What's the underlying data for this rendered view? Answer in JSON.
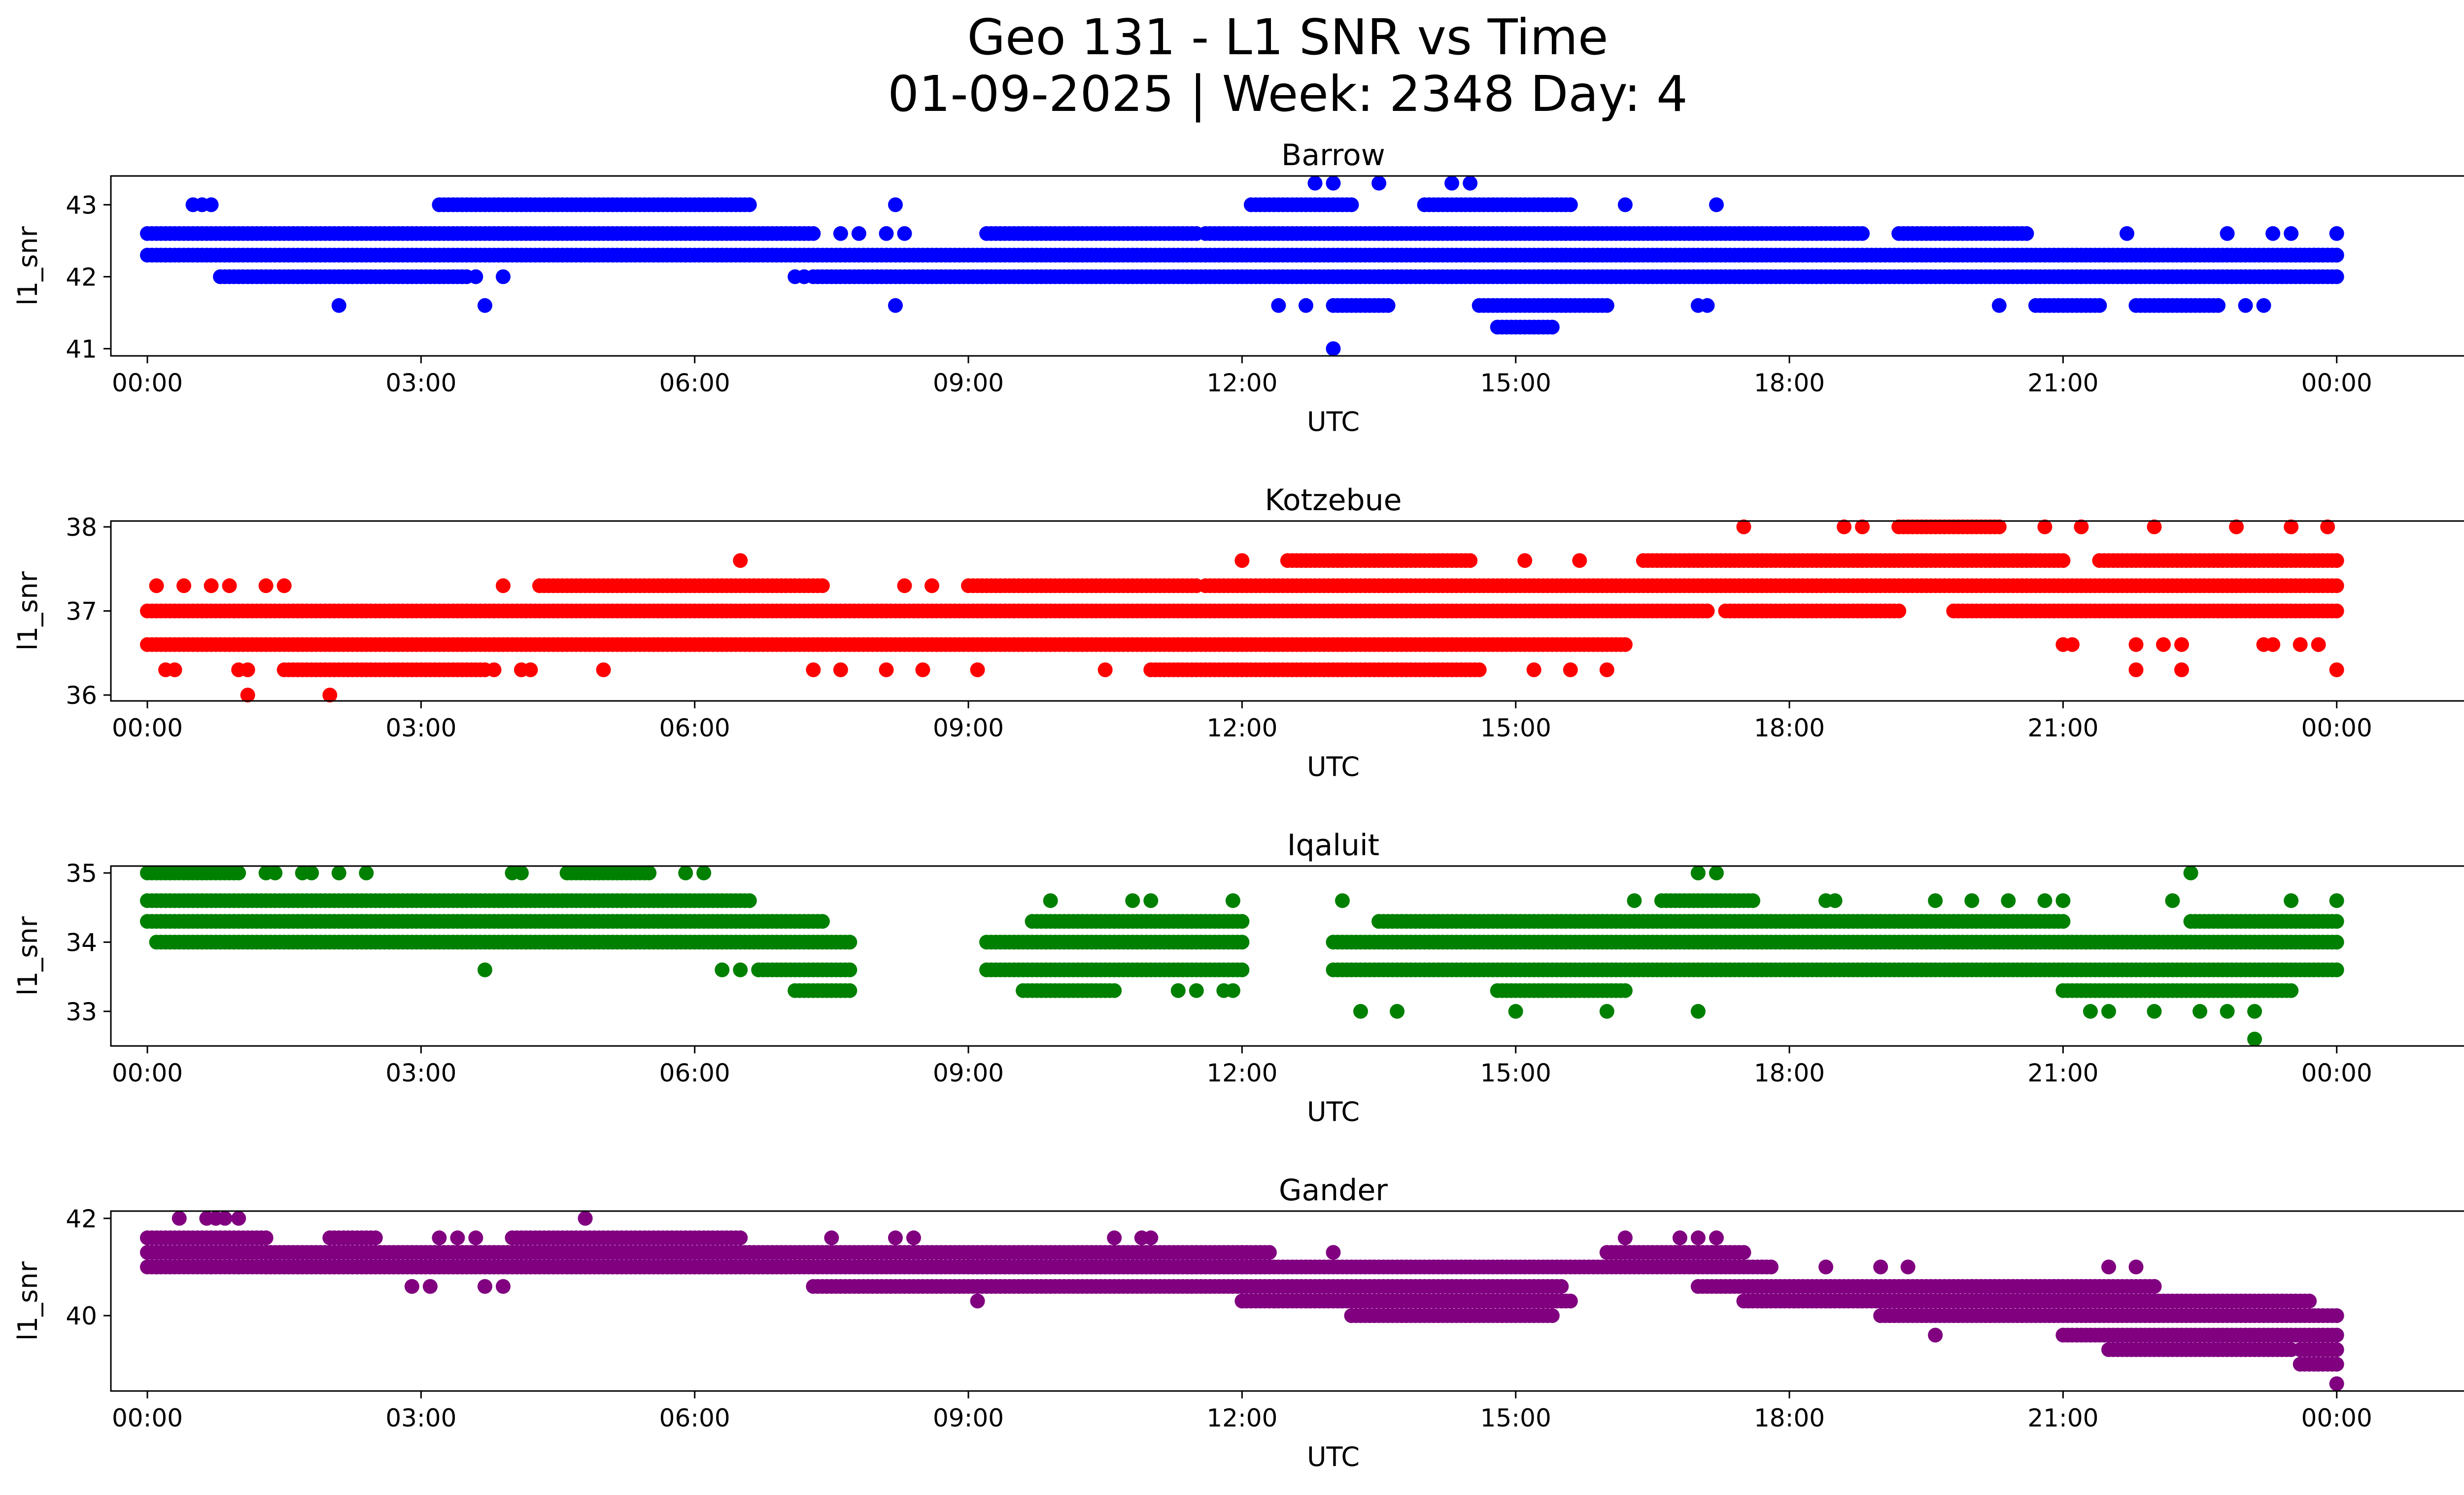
{
  "figure": {
    "title_line1": "Geo 131 - L1 SNR vs Time",
    "title_line2": "01-09-2025 | Week: 2348 Day: 4"
  },
  "chart_data": [
    {
      "type": "scatter",
      "title": "Barrow",
      "xlabel": "UTC",
      "ylabel": "l1_snr",
      "color": "#0000ff",
      "xlim": [
        -0.4,
        26.4
      ],
      "ylim": [
        40.9,
        43.4
      ],
      "xticks": [
        0,
        3,
        6,
        9,
        12,
        15,
        18,
        21,
        24
      ],
      "xtick_labels": [
        "00:00",
        "03:00",
        "06:00",
        "09:00",
        "12:00",
        "15:00",
        "18:00",
        "21:00",
        "00:00"
      ],
      "yticks": [
        41,
        42,
        43
      ],
      "ytick_labels": [
        "41",
        "42",
        "43"
      ],
      "segments": [
        {
          "y": 42.6,
          "from": 0.0,
          "to": 7.3
        },
        {
          "y": 42.3,
          "from": 0.0,
          "to": 24.0
        },
        {
          "y": 42.0,
          "from": 0.8,
          "to": 3.5
        },
        {
          "y": 42.0,
          "from": 7.3,
          "to": 24.0
        },
        {
          "y": 42.6,
          "from": 9.2,
          "to": 11.5
        },
        {
          "y": 42.6,
          "from": 11.6,
          "to": 18.8
        },
        {
          "y": 42.6,
          "from": 19.2,
          "to": 20.6
        },
        {
          "y": 43.0,
          "from": 3.2,
          "to": 6.6
        },
        {
          "y": 43.0,
          "from": 12.1,
          "to": 13.2
        },
        {
          "y": 43.0,
          "from": 14.0,
          "to": 15.6
        },
        {
          "y": 42.3,
          "from": 23.5,
          "to": 24.0
        },
        {
          "y": 41.6,
          "from": 13.0,
          "to": 13.6
        },
        {
          "y": 41.6,
          "from": 14.6,
          "to": 16.0
        },
        {
          "y": 41.6,
          "from": 20.7,
          "to": 21.4
        },
        {
          "y": 41.6,
          "from": 21.8,
          "to": 22.7
        },
        {
          "y": 41.3,
          "from": 14.8,
          "to": 15.4
        }
      ],
      "points": [
        {
          "x": 0.5,
          "y": 43.0
        },
        {
          "x": 0.6,
          "y": 43.0
        },
        {
          "x": 0.7,
          "y": 43.0
        },
        {
          "x": 8.2,
          "y": 43.0
        },
        {
          "x": 17.2,
          "y": 43.0
        },
        {
          "x": 16.2,
          "y": 43.0
        },
        {
          "x": 12.8,
          "y": 43.3
        },
        {
          "x": 13.0,
          "y": 43.3
        },
        {
          "x": 13.5,
          "y": 43.3
        },
        {
          "x": 14.3,
          "y": 43.3
        },
        {
          "x": 14.5,
          "y": 43.3
        },
        {
          "x": 2.1,
          "y": 41.6
        },
        {
          "x": 3.7,
          "y": 41.6
        },
        {
          "x": 8.2,
          "y": 41.6
        },
        {
          "x": 12.4,
          "y": 41.6
        },
        {
          "x": 12.7,
          "y": 41.6
        },
        {
          "x": 17.0,
          "y": 41.6
        },
        {
          "x": 17.1,
          "y": 41.6
        },
        {
          "x": 20.3,
          "y": 41.6
        },
        {
          "x": 23.0,
          "y": 41.6
        },
        {
          "x": 23.2,
          "y": 41.6
        },
        {
          "x": 13.0,
          "y": 41.0
        },
        {
          "x": 3.6,
          "y": 42.0
        },
        {
          "x": 3.9,
          "y": 42.0
        },
        {
          "x": 22.8,
          "y": 42.6
        },
        {
          "x": 23.3,
          "y": 42.6
        },
        {
          "x": 23.5,
          "y": 42.6
        },
        {
          "x": 24.0,
          "y": 42.6
        },
        {
          "x": 21.7,
          "y": 42.6
        },
        {
          "x": 8.1,
          "y": 42.6
        },
        {
          "x": 8.3,
          "y": 42.6
        },
        {
          "x": 7.6,
          "y": 42.6
        },
        {
          "x": 7.8,
          "y": 42.6
        },
        {
          "x": 7.1,
          "y": 42.0
        },
        {
          "x": 7.2,
          "y": 42.0
        }
      ]
    },
    {
      "type": "scatter",
      "title": "Kotzebue",
      "xlabel": "UTC",
      "ylabel": "l1_snr",
      "color": "#ff0000",
      "xlim": [
        -0.4,
        26.4
      ],
      "ylim": [
        35.93,
        38.07
      ],
      "xticks": [
        0,
        3,
        6,
        9,
        12,
        15,
        18,
        21,
        24
      ],
      "xtick_labels": [
        "00:00",
        "03:00",
        "06:00",
        "09:00",
        "12:00",
        "15:00",
        "18:00",
        "21:00",
        "00:00"
      ],
      "yticks": [
        36,
        37,
        38
      ],
      "ytick_labels": [
        "36",
        "37",
        "38"
      ],
      "segments": [
        {
          "y": 37.0,
          "from": 0.0,
          "to": 17.1
        },
        {
          "y": 36.6,
          "from": 0.0,
          "to": 16.2
        },
        {
          "y": 36.3,
          "from": 1.5,
          "to": 3.7
        },
        {
          "y": 37.3,
          "from": 4.3,
          "to": 7.4
        },
        {
          "y": 37.3,
          "from": 9.0,
          "to": 11.5
        },
        {
          "y": 37.3,
          "from": 11.6,
          "to": 24.0
        },
        {
          "y": 37.6,
          "from": 16.4,
          "to": 21.0
        },
        {
          "y": 37.6,
          "from": 21.4,
          "to": 24.0
        },
        {
          "y": 38.0,
          "from": 19.2,
          "to": 20.3
        },
        {
          "y": 37.0,
          "from": 17.3,
          "to": 19.2
        },
        {
          "y": 37.0,
          "from": 19.8,
          "to": 24.0
        },
        {
          "y": 37.6,
          "from": 12.5,
          "to": 14.5
        },
        {
          "y": 36.3,
          "from": 11.0,
          "to": 14.6
        }
      ],
      "points": [
        {
          "x": 0.1,
          "y": 37.3
        },
        {
          "x": 0.4,
          "y": 37.3
        },
        {
          "x": 0.7,
          "y": 37.3
        },
        {
          "x": 0.9,
          "y": 37.3
        },
        {
          "x": 1.3,
          "y": 37.3
        },
        {
          "x": 1.5,
          "y": 37.3
        },
        {
          "x": 3.9,
          "y": 37.3
        },
        {
          "x": 0.2,
          "y": 36.3
        },
        {
          "x": 0.3,
          "y": 36.3
        },
        {
          "x": 1.0,
          "y": 36.3
        },
        {
          "x": 1.1,
          "y": 36.3
        },
        {
          "x": 3.8,
          "y": 36.3
        },
        {
          "x": 4.1,
          "y": 36.3
        },
        {
          "x": 4.2,
          "y": 36.3
        },
        {
          "x": 5.0,
          "y": 36.3
        },
        {
          "x": 7.3,
          "y": 36.3
        },
        {
          "x": 7.6,
          "y": 36.3
        },
        {
          "x": 8.1,
          "y": 36.3
        },
        {
          "x": 8.5,
          "y": 36.3
        },
        {
          "x": 9.1,
          "y": 36.3
        },
        {
          "x": 10.5,
          "y": 36.3
        },
        {
          "x": 15.2,
          "y": 36.3
        },
        {
          "x": 15.6,
          "y": 36.3
        },
        {
          "x": 16.0,
          "y": 36.3
        },
        {
          "x": 21.8,
          "y": 36.3
        },
        {
          "x": 22.3,
          "y": 36.3
        },
        {
          "x": 24.0,
          "y": 36.3
        },
        {
          "x": 1.1,
          "y": 36.0
        },
        {
          "x": 2.0,
          "y": 36.0
        },
        {
          "x": 6.5,
          "y": 37.6
        },
        {
          "x": 15.1,
          "y": 37.6
        },
        {
          "x": 15.7,
          "y": 37.6
        },
        {
          "x": 12.0,
          "y": 37.6
        },
        {
          "x": 17.5,
          "y": 38.0
        },
        {
          "x": 18.6,
          "y": 38.0
        },
        {
          "x": 18.8,
          "y": 38.0
        },
        {
          "x": 20.8,
          "y": 38.0
        },
        {
          "x": 21.2,
          "y": 38.0
        },
        {
          "x": 22.0,
          "y": 38.0
        },
        {
          "x": 22.9,
          "y": 38.0
        },
        {
          "x": 23.5,
          "y": 38.0
        },
        {
          "x": 23.9,
          "y": 38.0
        },
        {
          "x": 21.0,
          "y": 36.6
        },
        {
          "x": 21.1,
          "y": 36.6
        },
        {
          "x": 21.8,
          "y": 36.6
        },
        {
          "x": 22.1,
          "y": 36.6
        },
        {
          "x": 22.3,
          "y": 36.6
        },
        {
          "x": 23.2,
          "y": 36.6
        },
        {
          "x": 23.3,
          "y": 36.6
        },
        {
          "x": 23.6,
          "y": 36.6
        },
        {
          "x": 23.8,
          "y": 36.6
        },
        {
          "x": 8.3,
          "y": 37.3
        },
        {
          "x": 8.6,
          "y": 37.3
        }
      ]
    },
    {
      "type": "scatter",
      "title": "Iqaluit",
      "xlabel": "UTC",
      "ylabel": "l1_snr",
      "color": "#008000",
      "xlim": [
        -0.4,
        26.4
      ],
      "ylim": [
        32.5,
        35.1
      ],
      "xticks": [
        0,
        3,
        6,
        9,
        12,
        15,
        18,
        21,
        24
      ],
      "xtick_labels": [
        "00:00",
        "03:00",
        "06:00",
        "09:00",
        "12:00",
        "15:00",
        "18:00",
        "21:00",
        "00:00"
      ],
      "yticks": [
        33,
        34,
        35
      ],
      "ytick_labels": [
        "33",
        "34",
        "35"
      ],
      "segments": [
        {
          "y": 34.6,
          "from": 0.0,
          "to": 6.6
        },
        {
          "y": 34.3,
          "from": 0.0,
          "to": 7.4
        },
        {
          "y": 34.0,
          "from": 0.1,
          "to": 7.7
        },
        {
          "y": 33.6,
          "from": 6.7,
          "to": 7.7
        },
        {
          "y": 33.3,
          "from": 7.1,
          "to": 7.7
        },
        {
          "y": 35.0,
          "from": 4.6,
          "to": 5.5
        },
        {
          "y": 35.0,
          "from": 0.0,
          "to": 1.0
        },
        {
          "y": 34.0,
          "from": 9.2,
          "to": 12.0
        },
        {
          "y": 33.6,
          "from": 9.2,
          "to": 12.0
        },
        {
          "y": 34.3,
          "from": 9.7,
          "to": 12.0
        },
        {
          "y": 33.3,
          "from": 9.6,
          "to": 10.6
        },
        {
          "y": 34.0,
          "from": 13.0,
          "to": 24.0
        },
        {
          "y": 33.6,
          "from": 13.0,
          "to": 24.0
        },
        {
          "y": 34.3,
          "from": 13.5,
          "to": 21.0
        },
        {
          "y": 34.3,
          "from": 22.4,
          "to": 24.0
        },
        {
          "y": 33.3,
          "from": 14.8,
          "to": 16.2
        },
        {
          "y": 33.3,
          "from": 21.0,
          "to": 23.5
        },
        {
          "y": 34.6,
          "from": 16.6,
          "to": 17.6
        }
      ],
      "points": [
        {
          "x": 1.3,
          "y": 35.0
        },
        {
          "x": 1.4,
          "y": 35.0
        },
        {
          "x": 1.7,
          "y": 35.0
        },
        {
          "x": 1.8,
          "y": 35.0
        },
        {
          "x": 2.1,
          "y": 35.0
        },
        {
          "x": 2.4,
          "y": 35.0
        },
        {
          "x": 4.0,
          "y": 35.0
        },
        {
          "x": 4.1,
          "y": 35.0
        },
        {
          "x": 5.9,
          "y": 35.0
        },
        {
          "x": 6.1,
          "y": 35.0
        },
        {
          "x": 3.7,
          "y": 33.6
        },
        {
          "x": 6.3,
          "y": 33.6
        },
        {
          "x": 6.5,
          "y": 33.6
        },
        {
          "x": 9.9,
          "y": 34.6
        },
        {
          "x": 10.8,
          "y": 34.6
        },
        {
          "x": 11.0,
          "y": 34.6
        },
        {
          "x": 11.9,
          "y": 34.6
        },
        {
          "x": 13.1,
          "y": 34.6
        },
        {
          "x": 11.3,
          "y": 33.3
        },
        {
          "x": 11.5,
          "y": 33.3
        },
        {
          "x": 11.8,
          "y": 33.3
        },
        {
          "x": 11.9,
          "y": 33.3
        },
        {
          "x": 13.3,
          "y": 33.0
        },
        {
          "x": 13.7,
          "y": 33.0
        },
        {
          "x": 15.0,
          "y": 33.0
        },
        {
          "x": 16.0,
          "y": 33.0
        },
        {
          "x": 17.0,
          "y": 33.0
        },
        {
          "x": 21.3,
          "y": 33.0
        },
        {
          "x": 21.5,
          "y": 33.0
        },
        {
          "x": 22.0,
          "y": 33.0
        },
        {
          "x": 22.5,
          "y": 33.0
        },
        {
          "x": 22.8,
          "y": 33.0
        },
        {
          "x": 23.1,
          "y": 33.0
        },
        {
          "x": 23.1,
          "y": 32.6
        },
        {
          "x": 17.0,
          "y": 35.0
        },
        {
          "x": 17.2,
          "y": 35.0
        },
        {
          "x": 22.4,
          "y": 35.0
        },
        {
          "x": 16.3,
          "y": 34.6
        },
        {
          "x": 18.4,
          "y": 34.6
        },
        {
          "x": 18.5,
          "y": 34.6
        },
        {
          "x": 19.6,
          "y": 34.6
        },
        {
          "x": 20.0,
          "y": 34.6
        },
        {
          "x": 20.4,
          "y": 34.6
        },
        {
          "x": 20.8,
          "y": 34.6
        },
        {
          "x": 21.0,
          "y": 34.6
        },
        {
          "x": 22.2,
          "y": 34.6
        },
        {
          "x": 23.5,
          "y": 34.6
        },
        {
          "x": 24.0,
          "y": 34.6
        }
      ]
    },
    {
      "type": "scatter",
      "title": "Gander",
      "xlabel": "UTC",
      "ylabel": "l1_snr",
      "color": "#800080",
      "xlim": [
        -0.4,
        26.4
      ],
      "ylim": [
        38.45,
        42.15
      ],
      "xticks": [
        0,
        3,
        6,
        9,
        12,
        15,
        18,
        21,
        24
      ],
      "xtick_labels": [
        "00:00",
        "03:00",
        "06:00",
        "09:00",
        "12:00",
        "15:00",
        "18:00",
        "21:00",
        "00:00"
      ],
      "yticks": [
        40,
        42
      ],
      "ytick_labels": [
        "40",
        "42"
      ],
      "segments": [
        {
          "y": 41.6,
          "from": 0.0,
          "to": 1.3
        },
        {
          "y": 41.3,
          "from": 0.0,
          "to": 12.3
        },
        {
          "y": 41.0,
          "from": 0.0,
          "to": 7.0
        },
        {
          "y": 41.0,
          "from": 1.3,
          "to": 17.8
        },
        {
          "y": 41.6,
          "from": 4.0,
          "to": 6.5
        },
        {
          "y": 41.6,
          "from": 2.0,
          "to": 2.5
        },
        {
          "y": 40.6,
          "from": 7.3,
          "to": 12.0
        },
        {
          "y": 40.6,
          "from": 12.0,
          "to": 15.5
        },
        {
          "y": 40.3,
          "from": 12.0,
          "to": 15.6
        },
        {
          "y": 41.3,
          "from": 16.0,
          "to": 17.5
        },
        {
          "y": 40.6,
          "from": 17.0,
          "to": 21.5
        },
        {
          "y": 40.3,
          "from": 17.5,
          "to": 23.7
        },
        {
          "y": 40.6,
          "from": 20.0,
          "to": 22.0
        },
        {
          "y": 40.0,
          "from": 19.0,
          "to": 24.0
        },
        {
          "y": 40.0,
          "from": 13.2,
          "to": 15.4
        },
        {
          "y": 39.6,
          "from": 21.0,
          "to": 24.0
        },
        {
          "y": 39.3,
          "from": 21.5,
          "to": 23.5
        },
        {
          "y": 39.3,
          "from": 23.6,
          "to": 24.0
        },
        {
          "y": 39.0,
          "from": 23.6,
          "to": 24.0
        },
        {
          "y": 41.0,
          "from": 9.0,
          "to": 12.3
        }
      ],
      "points": [
        {
          "x": 0.35,
          "y": 42.0
        },
        {
          "x": 0.65,
          "y": 42.0
        },
        {
          "x": 0.75,
          "y": 42.0
        },
        {
          "x": 0.85,
          "y": 42.0
        },
        {
          "x": 1.0,
          "y": 42.0
        },
        {
          "x": 4.8,
          "y": 42.0
        },
        {
          "x": 0.1,
          "y": 41.0
        },
        {
          "x": 0.7,
          "y": 41.0
        },
        {
          "x": 1.0,
          "y": 41.0
        },
        {
          "x": 2.9,
          "y": 40.6
        },
        {
          "x": 3.1,
          "y": 40.6
        },
        {
          "x": 3.7,
          "y": 40.6
        },
        {
          "x": 3.9,
          "y": 40.6
        },
        {
          "x": 3.2,
          "y": 41.6
        },
        {
          "x": 3.4,
          "y": 41.6
        },
        {
          "x": 3.6,
          "y": 41.6
        },
        {
          "x": 7.5,
          "y": 41.6
        },
        {
          "x": 8.2,
          "y": 41.6
        },
        {
          "x": 8.4,
          "y": 41.6
        },
        {
          "x": 10.6,
          "y": 41.6
        },
        {
          "x": 10.9,
          "y": 41.6
        },
        {
          "x": 11.0,
          "y": 41.6
        },
        {
          "x": 16.2,
          "y": 41.6
        },
        {
          "x": 16.8,
          "y": 41.6
        },
        {
          "x": 17.0,
          "y": 41.6
        },
        {
          "x": 17.2,
          "y": 41.6
        },
        {
          "x": 9.1,
          "y": 40.3
        },
        {
          "x": 12.0,
          "y": 41.3
        },
        {
          "x": 13.0,
          "y": 41.3
        },
        {
          "x": 19.6,
          "y": 39.6
        },
        {
          "x": 22.7,
          "y": 39.3
        },
        {
          "x": 24.0,
          "y": 38.6
        },
        {
          "x": 21.0,
          "y": 40.6
        },
        {
          "x": 21.9,
          "y": 40.6
        },
        {
          "x": 22.0,
          "y": 40.6
        },
        {
          "x": 21.5,
          "y": 41.0
        },
        {
          "x": 21.8,
          "y": 41.0
        },
        {
          "x": 18.4,
          "y": 41.0
        },
        {
          "x": 19.0,
          "y": 41.0
        },
        {
          "x": 19.3,
          "y": 41.0
        }
      ]
    }
  ]
}
